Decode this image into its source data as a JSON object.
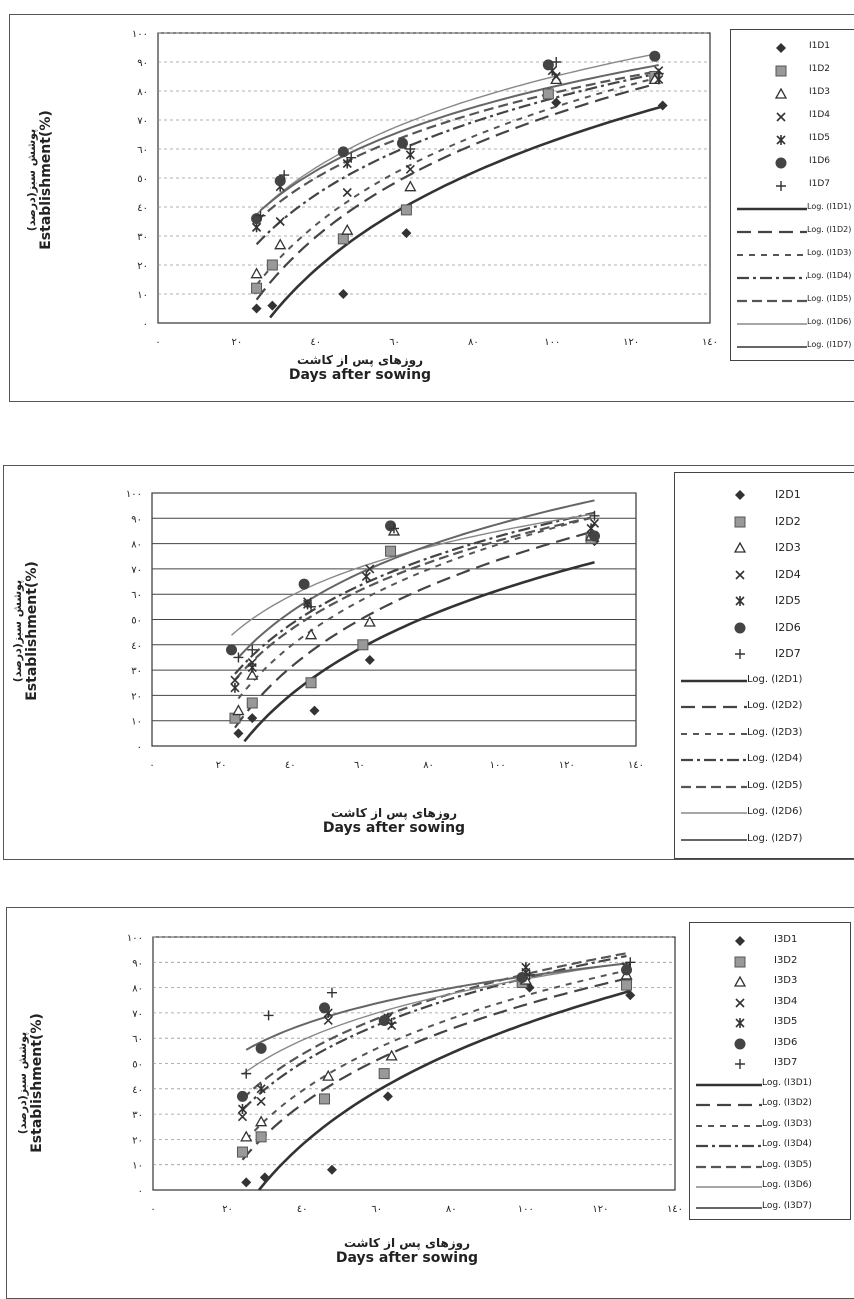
{
  "charts": [
    {
      "ylabel_fa": "پوشش سبز(درصد)",
      "ylabel_en": "Establishment(%)",
      "xlabel_fa": "روزهای پس از کاشت",
      "xlabel_en": "Days after sowing",
      "legend_points": [
        "I1D1",
        "I1D2",
        "I1D3",
        "I1D4",
        "I1D5",
        "I1D6",
        "I1D7"
      ],
      "legend_lines": [
        "Log. (I1D1)",
        "Log. (I1D2)",
        "Log. (I1D3)",
        "Log. (I1D4)",
        "Log. (I1D5)",
        "Log. (I1D6)",
        "Log. (I1D7)"
      ]
    },
    {
      "ylabel_fa": "پوشش سبز(درصد)",
      "ylabel_en": "Establishment(%)",
      "xlabel_fa": "روزهای پس از کاشت",
      "xlabel_en": "Days after sowing",
      "legend_points": [
        "I2D1",
        "I2D2",
        "I2D3",
        "I2D4",
        "I2D5",
        "I2D6",
        "I2D7"
      ],
      "legend_lines": [
        "Log. (I2D1)",
        "Log. (I2D2)",
        "Log. (I2D3)",
        "Log. (I2D4)",
        "Log. (I2D5)",
        "Log. (I2D6)",
        "Log. (I2D7)"
      ]
    },
    {
      "ylabel_fa": "پوشش سبز(درصد)",
      "ylabel_en": "Establishment(%)",
      "xlabel_fa": "روزهای پس از کاشت",
      "xlabel_en": "Days after sowing",
      "legend_points": [
        "I3D1",
        "I3D2",
        "I3D3",
        "I3D4",
        "I3D5",
        "I3D6",
        "I3D7"
      ],
      "legend_lines": [
        "Log. (I3D1)",
        "Log. (I3D2)",
        "Log. (I3D3)",
        "Log. (I3D4)",
        "Log. (I3D5)",
        "Log. (I3D6)",
        "Log. (I3D7)"
      ]
    }
  ],
  "chart_data": [
    {
      "type": "scatter",
      "xlim": [
        0,
        140
      ],
      "ylim": [
        0,
        100
      ],
      "xticks": [
        "٠",
        "٢٠",
        "٤٠",
        "٦٠",
        "٨٠",
        "١٠٠",
        "١٢٠",
        "١٤٠"
      ],
      "yticks": [
        "٠",
        "١٠",
        "٢٠",
        "٣٠",
        "٤٠",
        "٥٠",
        "٦٠",
        "٧٠",
        "٨٠",
        "٩٠",
        "١٠٠"
      ],
      "grid": "dashed",
      "legend_position": "right",
      "series": [
        {
          "marker": "diamond",
          "x": [
            25,
            29,
            47,
            63,
            101,
            128
          ],
          "y": [
            5,
            6,
            10,
            31,
            76,
            75
          ]
        },
        {
          "marker": "square",
          "x": [
            25,
            29,
            47,
            63,
            99,
            126
          ],
          "y": [
            12,
            20,
            29,
            39,
            79,
            85
          ]
        },
        {
          "marker": "triangle",
          "x": [
            25,
            31,
            48,
            64,
            101,
            126
          ],
          "y": [
            17,
            27,
            32,
            47,
            84,
            84
          ]
        },
        {
          "marker": "x",
          "x": [
            25,
            31,
            48,
            64,
            101,
            127
          ],
          "y": [
            33,
            35,
            45,
            53,
            85,
            87
          ]
        },
        {
          "marker": "star",
          "x": [
            25,
            31,
            48,
            64,
            100,
            127
          ],
          "y": [
            33,
            47,
            55,
            58,
            87,
            84
          ]
        },
        {
          "marker": "circle",
          "x": [
            25,
            31,
            47,
            62,
            99,
            126
          ],
          "y": [
            36,
            49,
            59,
            62,
            89,
            92
          ]
        },
        {
          "marker": "plus",
          "x": [
            26,
            32,
            49,
            64,
            101,
            127
          ],
          "y": [
            37,
            51,
            57,
            60,
            90,
            86
          ]
        }
      ]
    },
    {
      "type": "scatter",
      "xlim": [
        0,
        140
      ],
      "ylim": [
        0,
        100
      ],
      "xticks": [
        "٠",
        "٢٠",
        "٤٠",
        "٦٠",
        "٨٠",
        "١٠٠",
        "١٢٠",
        "١٤٠"
      ],
      "yticks": [
        "٠",
        "١٠",
        "٢٠",
        "٣٠",
        "٤٠",
        "٥٠",
        "٦٠",
        "٧٠",
        "٨٠",
        "٩٠",
        "١٠٠"
      ],
      "grid": "solid",
      "legend_position": "right",
      "series": [
        {
          "marker": "diamond",
          "x": [
            25,
            29,
            47,
            63,
            128
          ],
          "y": [
            5,
            11,
            14,
            34,
            81
          ]
        },
        {
          "marker": "square",
          "x": [
            24,
            29,
            46,
            61,
            69,
            127
          ],
          "y": [
            11,
            17,
            25,
            40,
            77,
            82
          ]
        },
        {
          "marker": "triangle",
          "x": [
            25,
            29,
            46,
            63,
            70,
            127
          ],
          "y": [
            14,
            28,
            44,
            49,
            85,
            83
          ]
        },
        {
          "marker": "x",
          "x": [
            24,
            29,
            45,
            63,
            128
          ],
          "y": [
            26,
            33,
            57,
            70,
            88
          ]
        },
        {
          "marker": "star",
          "x": [
            24,
            29,
            45,
            62,
            127
          ],
          "y": [
            23,
            31,
            56,
            67,
            86
          ]
        },
        {
          "marker": "circle",
          "x": [
            23,
            44,
            69,
            128
          ],
          "y": [
            38,
            64,
            87,
            83
          ]
        },
        {
          "marker": "plus",
          "x": [
            25,
            29,
            46,
            70,
            128
          ],
          "y": [
            35,
            38,
            55,
            86,
            91
          ]
        }
      ]
    },
    {
      "type": "scatter",
      "xlim": [
        0,
        140
      ],
      "ylim": [
        0,
        100
      ],
      "xticks": [
        "٠",
        "٢٠",
        "٤٠",
        "٦٠",
        "٨٠",
        "١٠٠",
        "١٢٠",
        "١٤٠"
      ],
      "yticks": [
        "٠",
        "١٠",
        "٢٠",
        "٣٠",
        "٤٠",
        "٥٠",
        "٦٠",
        "٧٠",
        "٨٠",
        "٩٠",
        "١٠٠"
      ],
      "grid": "dashed",
      "legend_position": "right",
      "series": [
        {
          "marker": "diamond",
          "x": [
            25,
            30,
            48,
            63,
            101,
            128
          ],
          "y": [
            3,
            5,
            8,
            37,
            80,
            77
          ]
        },
        {
          "marker": "square",
          "x": [
            24,
            29,
            46,
            62,
            99,
            127
          ],
          "y": [
            15,
            21,
            36,
            46,
            82,
            81
          ]
        },
        {
          "marker": "triangle",
          "x": [
            25,
            29,
            47,
            64,
            100,
            127
          ],
          "y": [
            21,
            27,
            45,
            53,
            83,
            85
          ]
        },
        {
          "marker": "x",
          "x": [
            24,
            29,
            47,
            64,
            100,
            127
          ],
          "y": [
            29,
            35,
            67,
            65,
            86,
            88
          ]
        },
        {
          "marker": "star",
          "x": [
            24,
            29,
            47,
            63,
            100,
            127
          ],
          "y": [
            32,
            40,
            70,
            68,
            88,
            88
          ]
        },
        {
          "marker": "circle",
          "x": [
            24,
            29,
            46,
            62,
            99,
            127
          ],
          "y": [
            37,
            56,
            72,
            67,
            84,
            87
          ]
        },
        {
          "marker": "plus",
          "x": [
            25,
            31,
            48,
            64,
            101,
            128
          ],
          "y": [
            46,
            69,
            78,
            66,
            85,
            90
          ]
        }
      ]
    }
  ]
}
